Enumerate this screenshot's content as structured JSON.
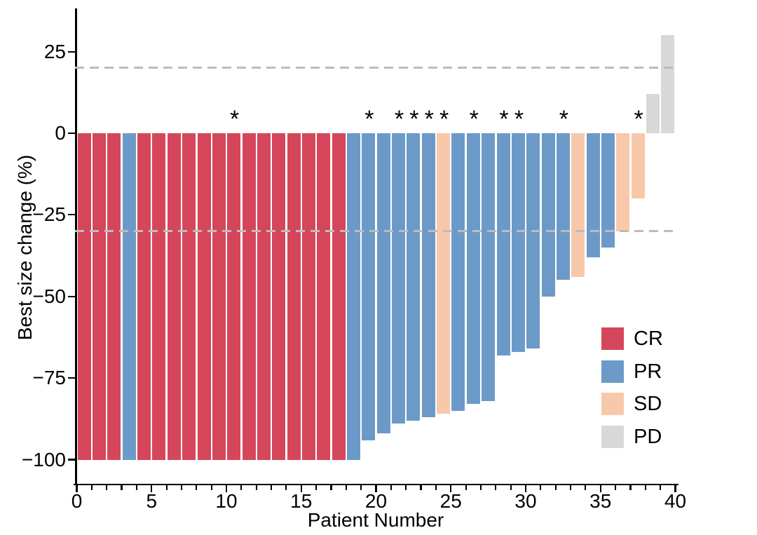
{
  "chart_data": {
    "type": "bar",
    "subtype": "waterfall",
    "title": "",
    "xlabel": "Patient Number",
    "ylabel": "Best size change (%)",
    "xlim": [
      0,
      40.5
    ],
    "ylim": [
      -107,
      38
    ],
    "grid": false,
    "x_major_ticks": [
      0,
      5,
      10,
      15,
      20,
      25,
      30,
      35,
      40
    ],
    "x_minor_tick_every": 1,
    "x_minor_tick_max": 40,
    "y_ticks": [
      {
        "value": 25,
        "label": "25"
      },
      {
        "value": 0,
        "label": "0"
      },
      {
        "value": -25,
        "label": "−25"
      },
      {
        "value": -50,
        "label": "−50"
      },
      {
        "value": -75,
        "label": "−75"
      },
      {
        "value": -100,
        "label": "−100"
      }
    ],
    "reference_lines": [
      {
        "y": 20,
        "style": "dashed",
        "color": "#bcbcbc"
      },
      {
        "y": -30,
        "style": "dashed",
        "color": "#bcbcbc"
      }
    ],
    "annotation_symbol": "*",
    "colors": {
      "CR": "#d5465b",
      "PR": "#6c9ac8",
      "SD": "#f8c8ab",
      "PD": "#d8d8d8"
    },
    "legend": {
      "position": "inside-right",
      "items": [
        {
          "label": "CR",
          "color": "#d5465b"
        },
        {
          "label": "PR",
          "color": "#6c9ac8"
        },
        {
          "label": "SD",
          "color": "#f8c8ab"
        },
        {
          "label": "PD",
          "color": "#d8d8d8"
        }
      ]
    },
    "patients": [
      {
        "patient": 1,
        "value": -100,
        "response": "CR",
        "starred": false
      },
      {
        "patient": 2,
        "value": -100,
        "response": "CR",
        "starred": false
      },
      {
        "patient": 3,
        "value": -100,
        "response": "CR",
        "starred": false
      },
      {
        "patient": 4,
        "value": -100,
        "response": "PR",
        "starred": false
      },
      {
        "patient": 5,
        "value": -100,
        "response": "CR",
        "starred": false
      },
      {
        "patient": 6,
        "value": -100,
        "response": "CR",
        "starred": false
      },
      {
        "patient": 7,
        "value": -100,
        "response": "CR",
        "starred": false
      },
      {
        "patient": 8,
        "value": -100,
        "response": "CR",
        "starred": false
      },
      {
        "patient": 9,
        "value": -100,
        "response": "CR",
        "starred": false
      },
      {
        "patient": 10,
        "value": -100,
        "response": "CR",
        "starred": false
      },
      {
        "patient": 11,
        "value": -100,
        "response": "CR",
        "starred": true
      },
      {
        "patient": 12,
        "value": -100,
        "response": "CR",
        "starred": false
      },
      {
        "patient": 13,
        "value": -100,
        "response": "CR",
        "starred": false
      },
      {
        "patient": 14,
        "value": -100,
        "response": "CR",
        "starred": false
      },
      {
        "patient": 15,
        "value": -100,
        "response": "CR",
        "starred": false
      },
      {
        "patient": 16,
        "value": -100,
        "response": "CR",
        "starred": false
      },
      {
        "pat": 0,
        "patient": 17,
        "value": -100,
        "response": "CR",
        "starred": false
      },
      {
        "patient": 18,
        "value": -100,
        "response": "CR",
        "starred": false
      },
      {
        "patient": 19,
        "value": -100,
        "response": "PR",
        "starred": false
      },
      {
        "patient": 20,
        "value": -94,
        "response": "PR",
        "starred": true
      },
      {
        "patient": 21,
        "value": -92,
        "response": "PR",
        "starred": false
      },
      {
        "patient": 22,
        "value": -89,
        "response": "PR",
        "starred": true
      },
      {
        "patient": 23,
        "value": -88,
        "response": "PR",
        "starred": true
      },
      {
        "patient": 24,
        "value": -87,
        "response": "PR",
        "starred": true
      },
      {
        "patient": 25,
        "value": -86,
        "response": "SD",
        "starred": true
      },
      {
        "patient": 26,
        "value": -85,
        "response": "PR",
        "starred": false
      },
      {
        "patient": 27,
        "value": -83,
        "response": "PR",
        "starred": true
      },
      {
        "patient": 28,
        "value": -82,
        "response": "PR",
        "starred": false
      },
      {
        "patient": 29,
        "value": -68,
        "response": "PR",
        "starred": true
      },
      {
        "patient": 30,
        "value": -67,
        "response": "PR",
        "starred": true
      },
      {
        "patient": 31,
        "value": -66,
        "response": "PR",
        "starred": false
      },
      {
        "patient": 32,
        "value": -50,
        "response": "PR",
        "starred": false
      },
      {
        "patient": 33,
        "value": -45,
        "response": "PR",
        "starred": true
      },
      {
        "patient": 34,
        "value": -44,
        "response": "SD",
        "starred": false
      },
      {
        "patient": 35,
        "value": -38,
        "response": "PR",
        "starred": false
      },
      {
        "patient": 36,
        "value": -35,
        "response": "PR",
        "starred": false
      },
      {
        "patient": 37,
        "value": -30,
        "response": "SD",
        "starred": false
      },
      {
        "patient": 38,
        "value": -20,
        "response": "SD",
        "starred": true
      },
      {
        "patient": 39,
        "value": 12,
        "response": "PD",
        "starred": false
      },
      {
        "patient": 40,
        "value": 30,
        "response": "PD",
        "starred": false
      }
    ]
  }
}
